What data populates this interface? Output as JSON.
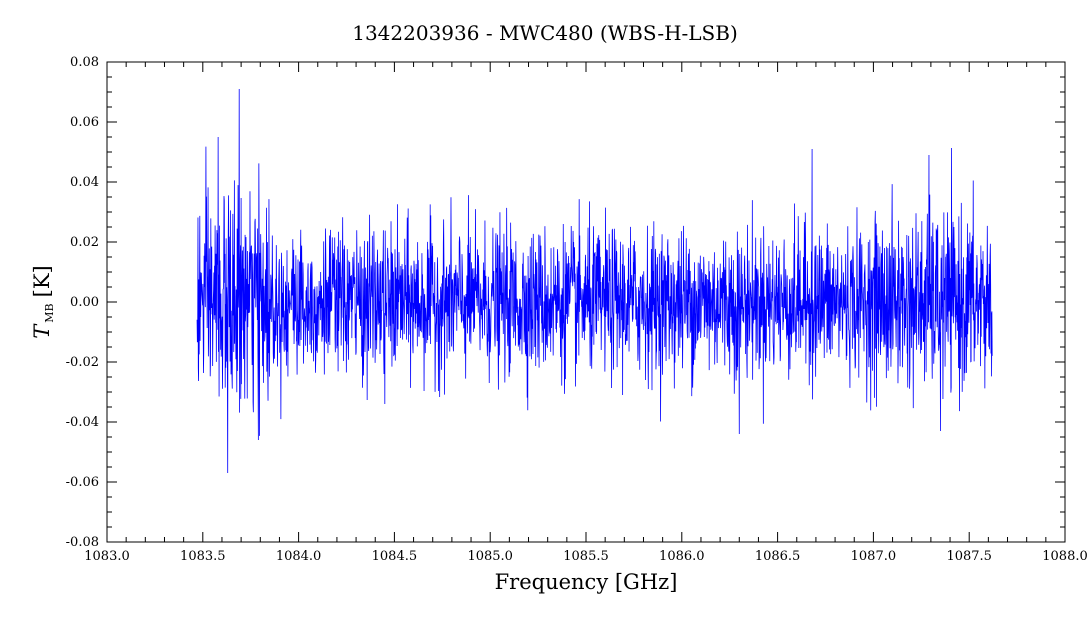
{
  "chart_data": {
    "type": "line",
    "title": "1342203936 - MWC480 (WBS-H-LSB)",
    "xlabel": "Frequency [GHz]",
    "ylabel_main": "T",
    "ylabel_sub": "MB",
    "ylabel_unit": "[K]",
    "xlim": [
      1083.0,
      1088.0
    ],
    "ylim": [
      -0.08,
      0.08
    ],
    "xticks": [
      "1083.0",
      "1083.5",
      "1084.0",
      "1084.5",
      "1085.0",
      "1085.5",
      "1086.0",
      "1086.5",
      "1087.0",
      "1087.5",
      "1088.0"
    ],
    "yticks": [
      "0.08",
      "0.06",
      "0.04",
      "0.02",
      "0.00",
      "-0.02",
      "-0.04",
      "-0.06",
      "-0.08"
    ],
    "grid": false,
    "series": [
      {
        "color": "#0000ff",
        "x_range": [
          1083.47,
          1087.62
        ],
        "y_min": -0.057,
        "y_max": 0.071,
        "noise_rms": 0.012,
        "features": [
          {
            "x": 1083.69,
            "y": 0.071
          },
          {
            "x": 1083.63,
            "y": -0.057
          },
          {
            "x": 1083.58,
            "y": 0.055
          },
          {
            "x": 1083.79,
            "y": -0.046
          },
          {
            "x": 1084.45,
            "y": -0.034
          },
          {
            "x": 1086.3,
            "y": -0.044
          },
          {
            "x": 1086.68,
            "y": 0.051
          },
          {
            "x": 1087.29,
            "y": 0.049
          },
          {
            "x": 1087.35,
            "y": -0.043
          }
        ]
      }
    ]
  }
}
